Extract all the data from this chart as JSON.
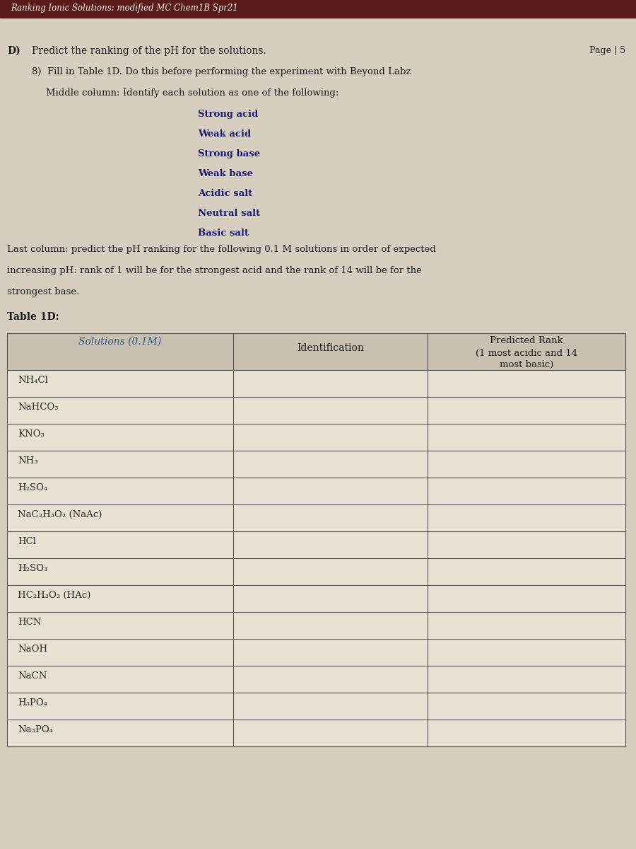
{
  "header_line": "Ranking Ionic Solutions: modified MC Chem1B Spr21",
  "page_label": "Page | 5",
  "section_label": "D)",
  "section_title": "Predict the ranking of the pH for the solutions.",
  "sub_item": "8)  Fill in Table 1D. Do this before performing the experiment with Beyond Labz",
  "middle_col_intro": "Middle column: Identify each solution as one of the following:",
  "bullet_items": [
    "Strong acid",
    "Weak acid",
    "Strong base",
    "Weak base",
    "Acidic salt",
    "Neutral salt",
    "Basic salt"
  ],
  "last_col_text_line1": "Last column: predict the pH ranking for the following 0.1 M solutions in order of expected",
  "last_col_text_line2": "increasing pH: rank of 1 will be for the strongest acid and the rank of 14 will be for the",
  "last_col_text_line3": "strongest base.",
  "table_label": "Table 1D:",
  "col1_header": "Solutions (0.1M)",
  "col2_header": "Identification",
  "col3_header_line1": "Predicted Rank",
  "col3_header_line2": "(1 most acidic and 14",
  "col3_header_line3": "most basic)",
  "solutions": [
    "NH₄Cl",
    "NaHCO₃",
    "KNO₃",
    "NH₃",
    "H₂SO₄",
    "NaC₂H₃O₂ (NaAc)",
    "HCl",
    "H₂SO₃",
    "HC₂H₃O₂ (HAc)",
    "HCN",
    "NaOH",
    "NaCN",
    "H₃PO₄",
    "Na₃PO₄"
  ],
  "bg_color": "#d6cfc0",
  "paper_color": "#e8e2d5",
  "table_bg": "#d6cfc0",
  "header_color": "#1a1a6e",
  "text_color": "#1a1a1a",
  "bullet_color": "#1a1a6e",
  "table_text_color": "#2a2a2a",
  "header_text_color": "#2a5a8a",
  "line_color": "#555555",
  "font_size_header": 8.5,
  "font_size_body": 9.0,
  "font_size_bullet": 9.0,
  "font_size_table": 9.5
}
